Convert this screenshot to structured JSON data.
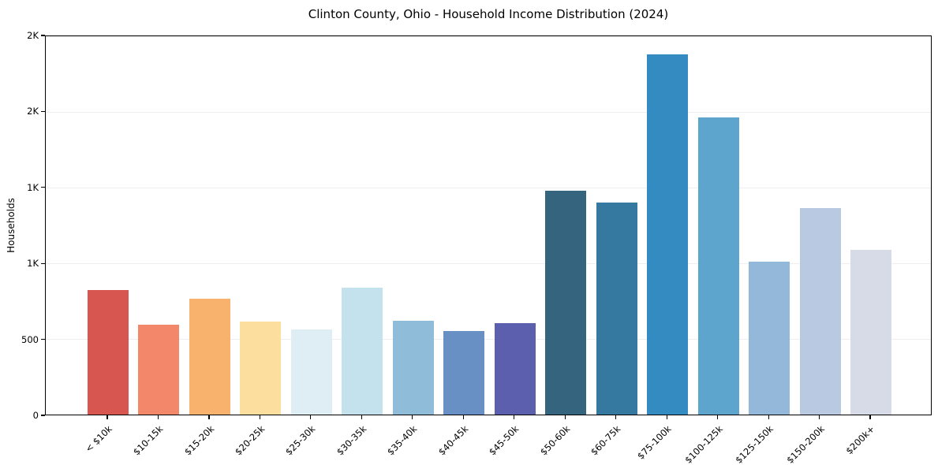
{
  "chart_data": {
    "type": "bar",
    "title": "Clinton County, Ohio - Household Income Distribution (2024)",
    "xlabel": "",
    "ylabel": "Households",
    "categories": [
      "< $10k",
      "$10-15k",
      "$15-20k",
      "$20-25k",
      "$25-30k",
      "$30-35k",
      "$35-40k",
      "$40-45k",
      "$45-50k",
      "$50-60k",
      "$60-75k",
      "$75-100k",
      "$100-125k",
      "$125-150k",
      "$150-200k",
      "$200k+"
    ],
    "values": [
      821,
      596,
      768,
      614,
      564,
      839,
      619,
      553,
      603,
      1480,
      1400,
      2381,
      1966,
      1008,
      1366,
      1091
    ],
    "bar_colors": [
      "#d7564f",
      "#f2876a",
      "#f9b16e",
      "#fcdf9e",
      "#dfeef5",
      "#c3e2ee",
      "#8fbcd9",
      "#6890c5",
      "#5c5fae",
      "#35657e",
      "#3579a0",
      "#338bc1",
      "#5ea5cd",
      "#93b8da",
      "#b9c9e2",
      "#d7dae7"
    ],
    "ylim": [
      0,
      2500
    ],
    "yticks": [
      {
        "value": 0,
        "label": "0"
      },
      {
        "value": 500,
        "label": "500"
      },
      {
        "value": 1000,
        "label": "1K"
      },
      {
        "value": 1500,
        "label": "1K"
      },
      {
        "value": 2000,
        "label": "2K"
      },
      {
        "value": 2500,
        "label": "2K"
      }
    ],
    "grid": "horizontal-light",
    "legend": "none",
    "frame_color": "#000000",
    "background_color": "#ffffff",
    "x_tick_rotation_deg": 45
  }
}
